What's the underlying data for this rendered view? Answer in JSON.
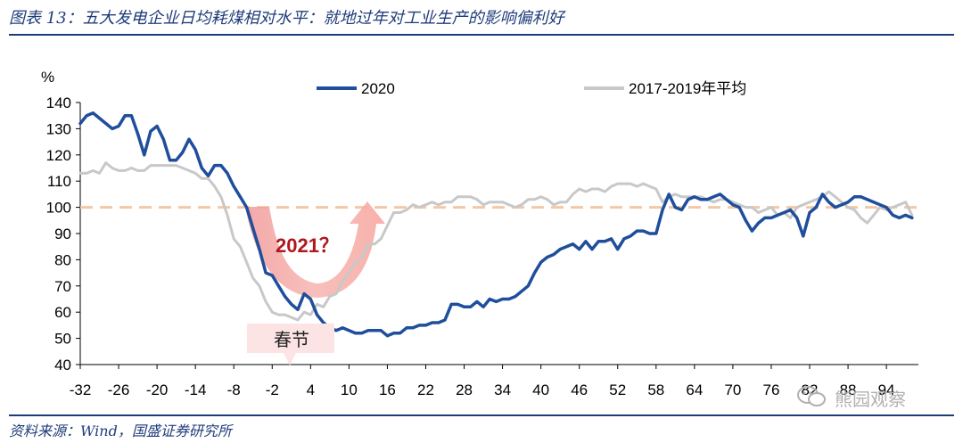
{
  "header": {
    "figure_title": "图表 13：五大发电企业日均耗煤相对水平：就地过年对工业生产的影响偏利好"
  },
  "footer": {
    "source": "资料来源：Wind，国盛证券研究所",
    "watermark": "熊园观察"
  },
  "chart_data": {
    "type": "line",
    "ylabel": "%",
    "ylim": [
      40,
      140
    ],
    "y_ticks": [
      40,
      50,
      60,
      70,
      80,
      90,
      100,
      110,
      120,
      130,
      140
    ],
    "xlim": [
      -32,
      99
    ],
    "x_tick_labels": [
      "-32",
      "-26",
      "-20",
      "-14",
      "-8",
      "-2",
      "4",
      "10",
      "16",
      "22",
      "28",
      "34",
      "40",
      "46",
      "52",
      "58",
      "64",
      "70",
      "76",
      "82",
      "88",
      "94"
    ],
    "legend_position": "top",
    "reference_line": {
      "value": 100,
      "style": "dashed",
      "color": "#f5c8a5"
    },
    "annotations": {
      "arrow_label": "2021？",
      "spring_festival_label": "春节"
    },
    "series": [
      {
        "name": "2020",
        "color": "#1f4e9c",
        "x": [
          -32,
          -31,
          -30,
          -29,
          -28,
          -27,
          -26,
          -25,
          -24,
          -23,
          -22,
          -21,
          -20,
          -19,
          -18,
          -17,
          -16,
          -15,
          -14,
          -13,
          -12,
          -11,
          -10,
          -9,
          -8,
          -7,
          -6,
          -5,
          -4,
          -3,
          -2,
          -1,
          0,
          1,
          2,
          3,
          4,
          5,
          6,
          7,
          8,
          9,
          10,
          11,
          12,
          13,
          14,
          15,
          16,
          17,
          18,
          19,
          20,
          21,
          22,
          23,
          24,
          25,
          26,
          27,
          28,
          29,
          30,
          31,
          32,
          33,
          34,
          35,
          36,
          37,
          38,
          39,
          40,
          41,
          42,
          43,
          44,
          45,
          46,
          47,
          48,
          49,
          50,
          51,
          52,
          53,
          54,
          55,
          56,
          57,
          58,
          59,
          60,
          61,
          62,
          63,
          64,
          65,
          66,
          67,
          68,
          69,
          70,
          71,
          72,
          73,
          74,
          75,
          76,
          77,
          78,
          79,
          80,
          81,
          82,
          83,
          84,
          85,
          86,
          87,
          88,
          89,
          90,
          91,
          92,
          93,
          94,
          95,
          96,
          97,
          98
        ],
        "values": [
          132,
          135,
          136,
          134,
          132,
          130,
          131,
          135,
          135,
          128,
          120,
          129,
          131,
          126,
          118,
          118,
          121,
          126,
          122,
          115,
          112,
          116,
          116,
          113,
          108,
          104,
          100,
          92,
          84,
          75,
          74,
          70,
          66,
          63,
          61,
          67,
          65,
          59,
          56,
          54,
          53,
          54,
          53,
          52,
          52,
          53,
          53,
          53,
          51,
          52,
          52,
          54,
          54,
          55,
          55,
          56,
          56,
          57,
          63,
          63,
          62,
          62,
          64,
          62,
          65,
          64,
          65,
          65,
          66,
          68,
          70,
          75,
          79,
          81,
          82,
          84,
          85,
          86,
          84,
          87,
          84,
          87,
          87,
          88,
          84,
          88,
          89,
          91,
          91,
          90,
          90,
          99,
          105,
          100,
          99,
          103,
          104,
          103,
          103,
          104,
          105,
          103,
          101,
          100,
          95,
          91,
          94,
          96,
          96,
          97,
          98,
          99,
          96,
          89,
          98,
          100,
          105,
          102,
          100,
          101,
          102,
          104,
          104,
          103,
          102,
          101,
          100,
          97,
          96,
          97,
          96
        ]
      },
      {
        "name": "2017-2019年平均",
        "color": "#c8c8c8",
        "x": [
          -32,
          -31,
          -30,
          -29,
          -28,
          -27,
          -26,
          -25,
          -24,
          -23,
          -22,
          -21,
          -20,
          -19,
          -18,
          -17,
          -16,
          -15,
          -14,
          -13,
          -12,
          -11,
          -10,
          -9,
          -8,
          -7,
          -6,
          -5,
          -4,
          -3,
          -2,
          -1,
          0,
          1,
          2,
          3,
          4,
          5,
          6,
          7,
          8,
          9,
          10,
          11,
          12,
          13,
          14,
          15,
          16,
          17,
          18,
          19,
          20,
          21,
          22,
          23,
          24,
          25,
          26,
          27,
          28,
          29,
          30,
          31,
          32,
          33,
          34,
          35,
          36,
          37,
          38,
          39,
          40,
          41,
          42,
          43,
          44,
          45,
          46,
          47,
          48,
          49,
          50,
          51,
          52,
          53,
          54,
          55,
          56,
          57,
          58,
          59,
          60,
          61,
          62,
          63,
          64,
          65,
          66,
          67,
          68,
          69,
          70,
          71,
          72,
          73,
          74,
          75,
          76,
          77,
          78,
          79,
          80,
          81,
          82,
          83,
          84,
          85,
          86,
          87,
          88,
          89,
          90,
          91,
          92,
          93,
          94,
          95,
          96,
          97,
          98
        ],
        "values": [
          113,
          113,
          114,
          113,
          117,
          115,
          114,
          114,
          115,
          114,
          114,
          116,
          116,
          116,
          116,
          116,
          115,
          114,
          113,
          111,
          111,
          108,
          104,
          97,
          88,
          85,
          79,
          73,
          70,
          64,
          60,
          59,
          59,
          58,
          57,
          60,
          59,
          63,
          62,
          66,
          67,
          72,
          75,
          79,
          81,
          86,
          86,
          88,
          93,
          98,
          98,
          99,
          101,
          100,
          101,
          102,
          101,
          102,
          102,
          104,
          104,
          104,
          103,
          101,
          102,
          102,
          102,
          101,
          100,
          101,
          103,
          103,
          104,
          103,
          101,
          102,
          102,
          105,
          107,
          106,
          107,
          107,
          106,
          108,
          109,
          109,
          109,
          108,
          109,
          108,
          107,
          102,
          104,
          105,
          104,
          104,
          104,
          104,
          103,
          102,
          103,
          103,
          102,
          101,
          100,
          100,
          98,
          99,
          100,
          97,
          98,
          96,
          100,
          101,
          102,
          103,
          104,
          106,
          104,
          102,
          100,
          99,
          96,
          94,
          97,
          100,
          99,
          100,
          101,
          102,
          97
        ]
      }
    ]
  }
}
